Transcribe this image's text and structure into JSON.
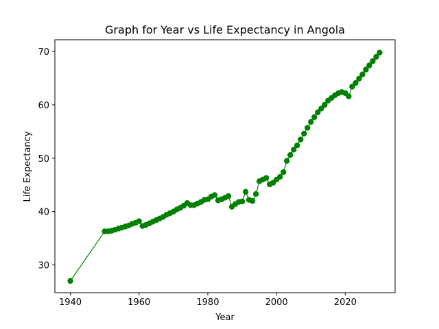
{
  "chart_data": {
    "type": "line",
    "title": "Graph for Year vs Life Expectancy in Angola",
    "xlabel": "Year",
    "ylabel": "Life Expectancy",
    "xlim": [
      1935.5,
      2034.5
    ],
    "ylim": [
      24.8,
      72.2
    ],
    "xticks": [
      1940,
      1960,
      1980,
      2000,
      2020
    ],
    "yticks": [
      30,
      40,
      50,
      60,
      70
    ],
    "grid": false,
    "legend": "none",
    "color": "#008000",
    "series": [
      {
        "x": [
          1940,
          1950,
          1951,
          1952,
          1953,
          1954,
          1955,
          1956,
          1957,
          1958,
          1959,
          1960,
          1961,
          1962,
          1963,
          1964,
          1965,
          1966,
          1967,
          1968,
          1969,
          1970,
          1971,
          1972,
          1973,
          1974,
          1975,
          1976,
          1977,
          1978,
          1979,
          1980,
          1981,
          1982,
          1983,
          1984,
          1985,
          1986,
          1987,
          1988,
          1989,
          1990,
          1991,
          1992,
          1993,
          1994,
          1995,
          1996,
          1997,
          1998,
          1999,
          2000,
          2001,
          2002,
          2003,
          2004,
          2005,
          2006,
          2007,
          2008,
          2009,
          2010,
          2011,
          2012,
          2013,
          2014,
          2015,
          2016,
          2017,
          2018,
          2019,
          2020,
          2021,
          2022,
          2023,
          2024,
          2025,
          2026,
          2027,
          2028,
          2029,
          2030
        ],
        "values": [
          27.0,
          36.3,
          36.3,
          36.4,
          36.6,
          36.8,
          37.0,
          37.2,
          37.4,
          37.7,
          37.9,
          38.2,
          37.3,
          37.5,
          37.8,
          38.1,
          38.4,
          38.7,
          39.0,
          39.4,
          39.7,
          40.0,
          40.4,
          40.7,
          41.1,
          41.6,
          41.2,
          41.2,
          41.5,
          41.8,
          42.2,
          42.3,
          42.8,
          43.1,
          42.1,
          42.3,
          42.6,
          42.9,
          40.9,
          41.4,
          41.8,
          41.9,
          43.7,
          42.2,
          42.0,
          43.3,
          45.7,
          46.0,
          46.3,
          45.1,
          45.4,
          46.0,
          46.5,
          47.4,
          49.5,
          50.6,
          51.6,
          52.4,
          53.5,
          54.6,
          55.7,
          56.8,
          57.7,
          58.6,
          59.3,
          60.0,
          60.8,
          61.3,
          61.8,
          62.2,
          62.4,
          62.2,
          61.6,
          63.4,
          64.1,
          64.9,
          65.7,
          66.6,
          67.4,
          68.2,
          69.0,
          69.8
        ]
      }
    ]
  }
}
